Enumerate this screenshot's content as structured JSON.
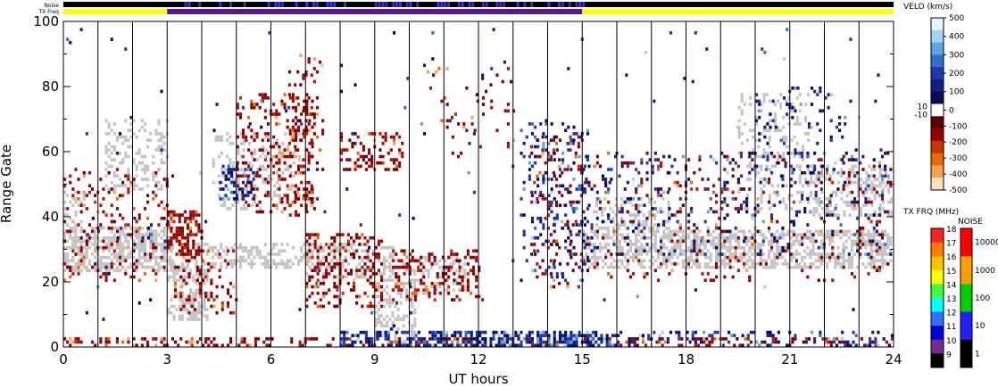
{
  "chart_data": {
    "type": "heatmap",
    "title": "",
    "xlabel": "UT hours",
    "ylabel": "Range Gate",
    "xlim": [
      0,
      24
    ],
    "ylim": [
      0,
      100
    ],
    "x_ticks": [
      0,
      3,
      6,
      9,
      12,
      15,
      18,
      21,
      24
    ],
    "y_ticks": [
      0,
      20,
      40,
      60,
      80,
      100
    ],
    "hour_gridlines": true,
    "top_strips": {
      "noise_label": "Noise",
      "txfreq_label": "TX Freq",
      "noise_color": "#1a1a80",
      "txfreq_segments": [
        {
          "start": 0,
          "end": 3,
          "color": "#ffff00"
        },
        {
          "start": 3,
          "end": 15,
          "color": "#5a1a8a"
        },
        {
          "start": 15,
          "end": 24,
          "color": "#ffff00"
        }
      ]
    },
    "velocity_scale": {
      "title": "VELO (km/s)",
      "ticks": [
        "500",
        "400",
        "300",
        "200",
        "100",
        "0",
        "-100",
        "-200",
        "-300",
        "-400",
        "-500"
      ],
      "zero_band_labels": [
        "10",
        "-10"
      ],
      "colors": [
        "#e6f2ff",
        "#9fd4f4",
        "#5aa6e0",
        "#2f6fd0",
        "#1c3ab0",
        "#101e86",
        "#0a0a50",
        "#ffffff",
        "#5c0000",
        "#990000",
        "#c63200",
        "#e86a00",
        "#f7a050",
        "#fde0c0"
      ]
    },
    "txfreq_scale": {
      "title": "TX FRQ (MHz)",
      "ticks": [
        "18",
        "17",
        "16",
        "15",
        "14",
        "13",
        "12",
        "11",
        "10",
        "9"
      ],
      "colors": [
        "#ff2020",
        "#ff7a00",
        "#ffc000",
        "#ffff00",
        "#40ff40",
        "#00ffff",
        "#3070ff",
        "#0000e0",
        "#7a2a8a",
        "#000000"
      ]
    },
    "noise_scale": {
      "title": "NOISE",
      "ticks": [
        "10000",
        "1000",
        "100",
        "10",
        "1"
      ],
      "colors": [
        "#ff0000",
        "#ffa000",
        "#00d000",
        "#2020ff",
        "#000000"
      ]
    },
    "scatter_regions": [
      {
        "kind": "ground",
        "x0": 0.0,
        "x1": 3.2,
        "y0": 23,
        "y1": 37,
        "density": 0.6
      },
      {
        "kind": "ground",
        "x0": 0.0,
        "x1": 0.6,
        "y0": 37,
        "y1": 48,
        "density": 0.35
      },
      {
        "kind": "ground",
        "x0": 1.2,
        "x1": 3.0,
        "y0": 48,
        "y1": 70,
        "density": 0.3
      },
      {
        "kind": "ground",
        "x0": 3.0,
        "x1": 4.2,
        "y0": 8,
        "y1": 26,
        "density": 0.5
      },
      {
        "kind": "ground",
        "x0": 3.8,
        "x1": 7.2,
        "y0": 24,
        "y1": 32,
        "density": 0.45
      },
      {
        "kind": "ground",
        "x0": 4.3,
        "x1": 6.8,
        "y0": 42,
        "y1": 66,
        "density": 0.25
      },
      {
        "kind": "ground",
        "x0": 7.0,
        "x1": 9.5,
        "y0": 20,
        "y1": 32,
        "density": 0.4
      },
      {
        "kind": "ground",
        "x0": 9.0,
        "x1": 10.2,
        "y0": 2,
        "y1": 20,
        "density": 0.4
      },
      {
        "kind": "ground",
        "x0": 9.8,
        "x1": 11.6,
        "y0": 16,
        "y1": 28,
        "density": 0.35
      },
      {
        "kind": "ground",
        "x0": 15.0,
        "x1": 24.0,
        "y0": 24,
        "y1": 36,
        "density": 0.55
      },
      {
        "kind": "ground",
        "x0": 15.3,
        "x1": 17.5,
        "y0": 36,
        "y1": 46,
        "density": 0.35
      },
      {
        "kind": "ground",
        "x0": 19.5,
        "x1": 21.5,
        "y0": 42,
        "y1": 78,
        "density": 0.2
      },
      {
        "kind": "ground",
        "x0": 21.5,
        "x1": 24.0,
        "y0": 40,
        "y1": 56,
        "density": 0.35
      },
      {
        "kind": "neg",
        "x0": 0.0,
        "x1": 3.0,
        "y0": 20,
        "y1": 55,
        "density": 0.12
      },
      {
        "kind": "neg",
        "x0": 3.0,
        "x1": 4.0,
        "y0": 28,
        "y1": 42,
        "density": 0.55
      },
      {
        "kind": "neg",
        "x0": 3.2,
        "x1": 5.0,
        "y0": 10,
        "y1": 30,
        "density": 0.2
      },
      {
        "kind": "neg",
        "x0": 5.0,
        "x1": 7.2,
        "y0": 40,
        "y1": 78,
        "density": 0.22
      },
      {
        "kind": "neg",
        "x0": 6.5,
        "x1": 7.5,
        "y0": 42,
        "y1": 90,
        "density": 0.15
      },
      {
        "kind": "neg",
        "x0": 7.0,
        "x1": 9.2,
        "y0": 12,
        "y1": 35,
        "density": 0.3
      },
      {
        "kind": "neg",
        "x0": 8.0,
        "x1": 9.8,
        "y0": 54,
        "y1": 66,
        "density": 0.3
      },
      {
        "kind": "neg",
        "x0": 9.5,
        "x1": 12.0,
        "y0": 14,
        "y1": 30,
        "density": 0.28
      },
      {
        "kind": "neg",
        "x0": 10.5,
        "x1": 13.0,
        "y0": 58,
        "y1": 86,
        "density": 0.05
      },
      {
        "kind": "neg",
        "x0": 13.5,
        "x1": 15.0,
        "y0": 18,
        "y1": 65,
        "density": 0.12
      },
      {
        "kind": "neg",
        "x0": 15.0,
        "x1": 24.0,
        "y0": 20,
        "y1": 60,
        "density": 0.07
      },
      {
        "kind": "neg",
        "x0": 0.0,
        "x1": 24.0,
        "y0": 0,
        "y1": 3,
        "density": 0.3
      },
      {
        "kind": "pos",
        "x0": 8.0,
        "x1": 16.0,
        "y0": 0,
        "y1": 5,
        "density": 0.55
      },
      {
        "kind": "pos",
        "x0": 16.0,
        "x1": 24.0,
        "y0": 0,
        "y1": 5,
        "density": 0.2
      },
      {
        "kind": "pos",
        "x0": 4.5,
        "x1": 5.5,
        "y0": 45,
        "y1": 56,
        "density": 0.4
      },
      {
        "kind": "pos",
        "x0": 13.2,
        "x1": 15.2,
        "y0": 20,
        "y1": 70,
        "density": 0.15
      },
      {
        "kind": "pos",
        "x0": 15.0,
        "x1": 24.0,
        "y0": 28,
        "y1": 60,
        "density": 0.08
      },
      {
        "kind": "pos",
        "x0": 20.0,
        "x1": 23.0,
        "y0": 50,
        "y1": 80,
        "density": 0.08
      },
      {
        "kind": "pos",
        "x0": 0.5,
        "x1": 3.0,
        "y0": 30,
        "y1": 40,
        "density": 0.05
      },
      {
        "kind": "pos",
        "x0": 0.0,
        "x1": 24.0,
        "y0": 5,
        "y1": 100,
        "density": 0.004
      }
    ]
  }
}
